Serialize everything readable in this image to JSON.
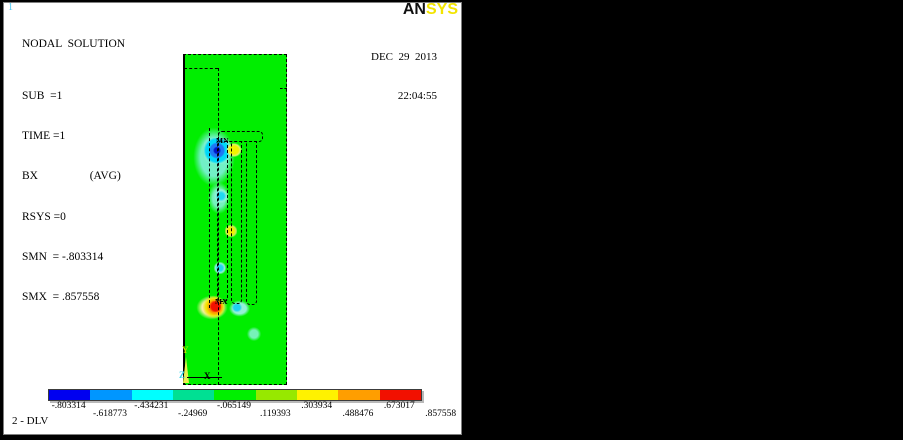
{
  "window": {
    "plot_number": "1",
    "annotation": "2 - DLV"
  },
  "legend": {
    "lines": [
      "NODAL  SOLUTION",
      "SUB  =1",
      "TIME =1",
      "BX                  (AVG)",
      "RSYS =0",
      "SMN  = -.803314",
      "SMX  = .857558"
    ]
  },
  "brand": {
    "an": "AN",
    "sys": "SYS",
    "date": "DEC  29  2013",
    "time": "22:04:55"
  },
  "markers": {
    "min": "MN",
    "max": "MX"
  },
  "triad": {
    "x": "X",
    "y": "Y",
    "z": "Z",
    "y_color": "#b6e000",
    "z_color": "#35d6e8"
  },
  "colorbar": {
    "values": [
      "-.803314",
      "-.618773",
      "-.434231",
      "-.24969",
      "-.065149",
      ".119393",
      ".303934",
      ".488476",
      ".673017",
      ".857558"
    ],
    "colors": [
      "#0000f0",
      "#0096ff",
      "#00ffff",
      "#00e093",
      "#00f000",
      "#97e800",
      "#fff200",
      "#ff9e00",
      "#f21000"
    ]
  },
  "colors": {
    "field_green": "#00ee00",
    "background": "#000000",
    "brand_yellow": "#f2e400"
  }
}
